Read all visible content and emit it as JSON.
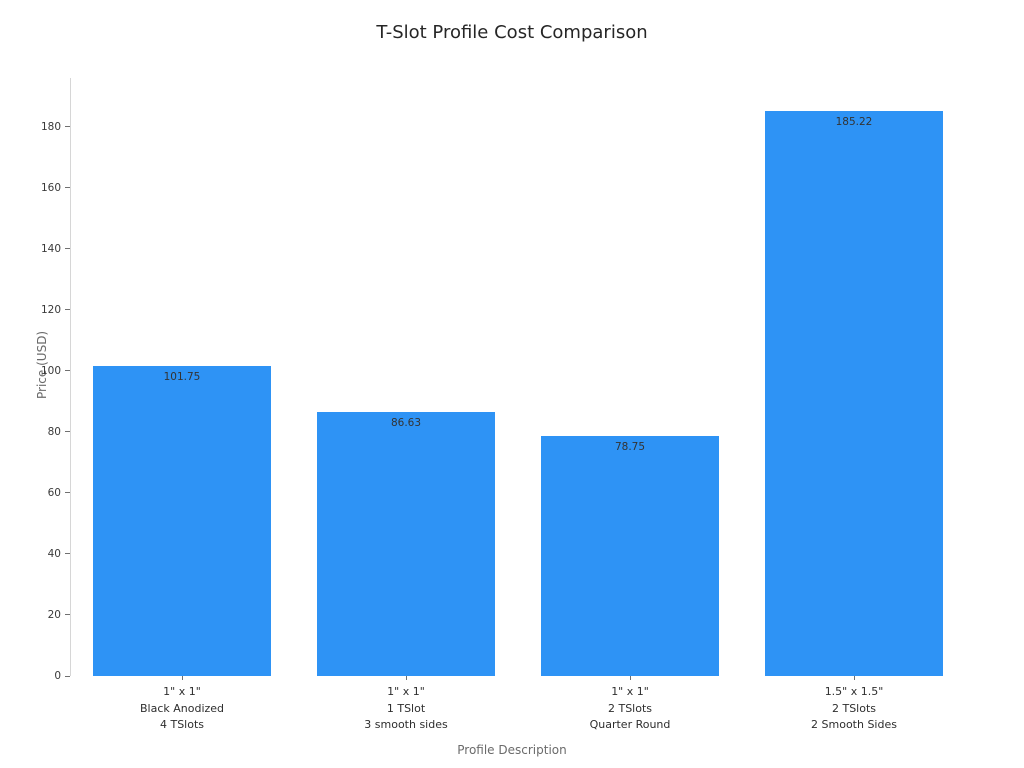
{
  "title": "T-Slot Profile Cost Comparison",
  "chart_data": {
    "type": "bar",
    "categories": [
      [
        "1\" x 1\"",
        "Black Anodized",
        "4 TSlots"
      ],
      [
        "1\" x 1\"",
        "1 TSlot",
        "3 smooth sides"
      ],
      [
        "1\" x 1\"",
        "2 TSlots",
        "Quarter Round"
      ],
      [
        "1.5\" x 1.5\"",
        "2 TSlots",
        "2 Smooth Sides"
      ]
    ],
    "values": [
      101.75,
      86.63,
      78.75,
      185.22
    ],
    "value_labels": [
      "101.75",
      "86.63",
      "78.75",
      "185.22"
    ],
    "title": "T-Slot Profile Cost Comparison",
    "xlabel": "Profile Description",
    "ylabel": "Price (USD)",
    "ylim": [
      0,
      196
    ],
    "yticks": [
      0,
      20,
      40,
      60,
      80,
      100,
      120,
      140,
      160,
      180
    ],
    "grid": false,
    "legend": "none",
    "bar_color": "#2E93F5"
  }
}
